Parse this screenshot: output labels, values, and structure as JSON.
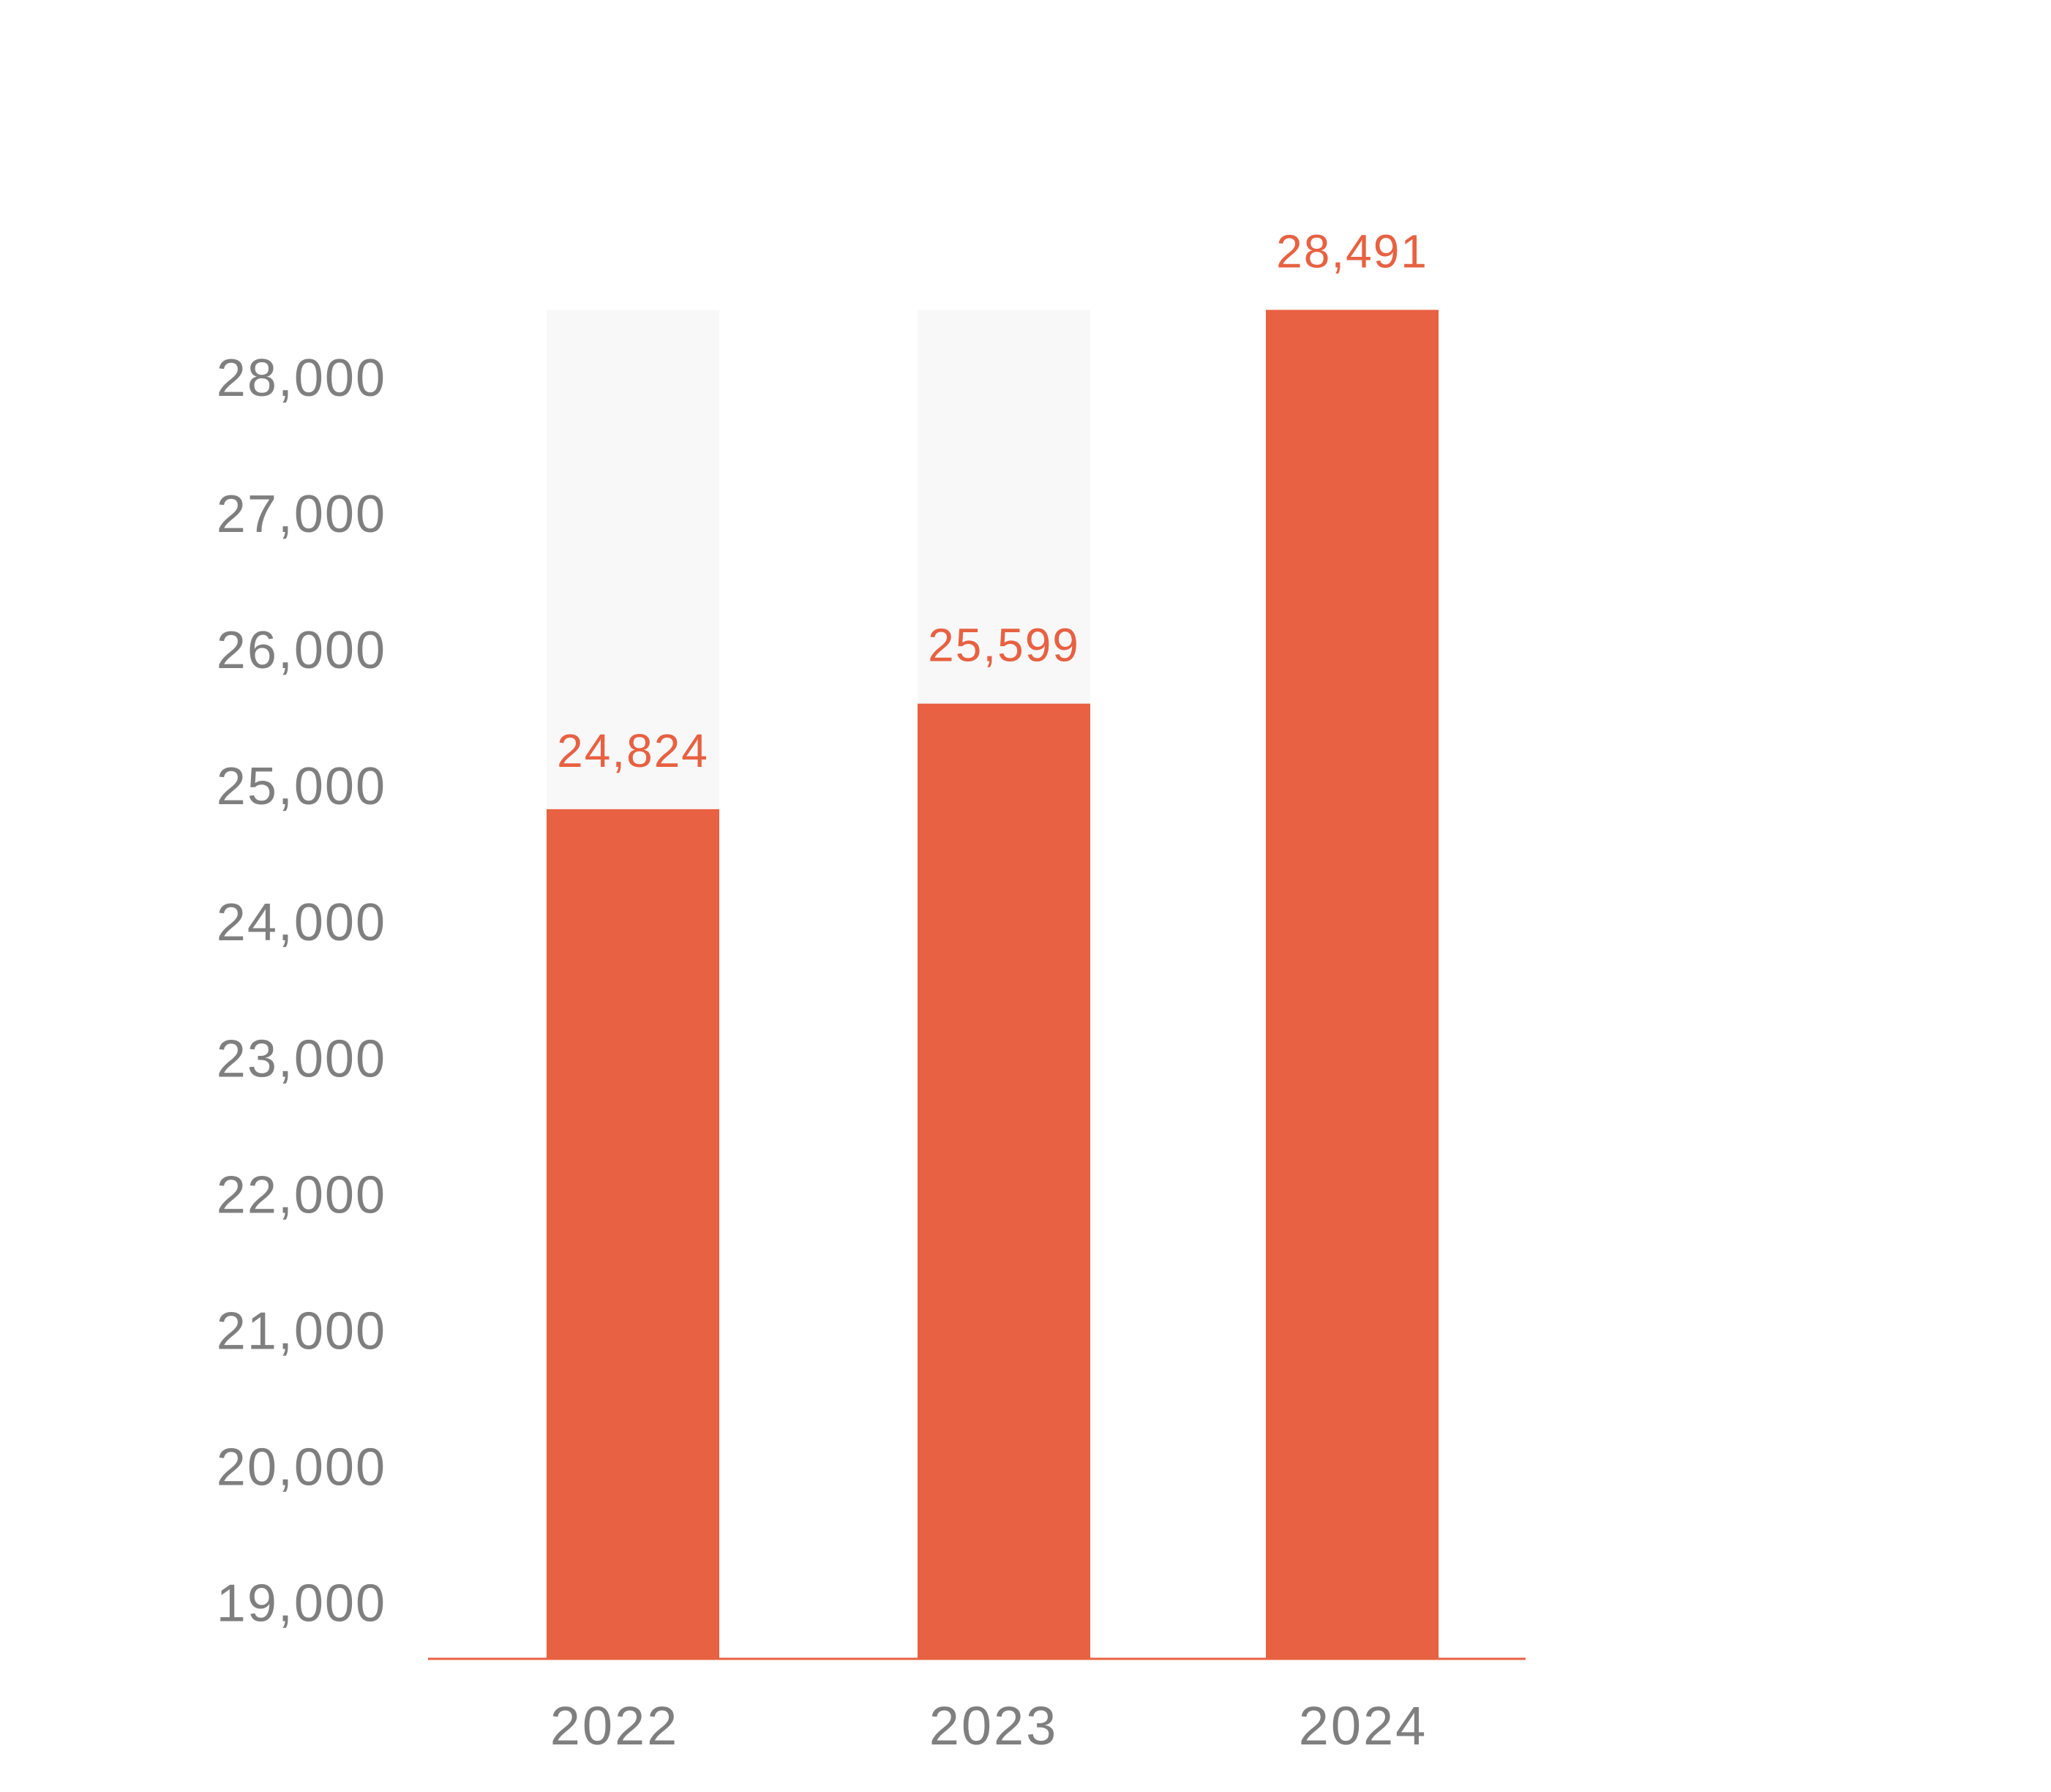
{
  "chart_data": {
    "type": "bar",
    "categories": [
      "2022",
      "2023",
      "2024"
    ],
    "values": [
      24824,
      25599,
      28491
    ],
    "data_labels": [
      "24,824",
      "25,599",
      "28,491"
    ],
    "yticks": [
      19000,
      20000,
      21000,
      22000,
      23000,
      24000,
      25000,
      26000,
      27000,
      28000
    ],
    "ytick_labels": [
      "19,000",
      "20,000",
      "21,000",
      "22,000",
      "23,000",
      "24,000",
      "25,000",
      "26,000",
      "27,000",
      "28,000"
    ],
    "ylim": [
      18590,
      28891
    ],
    "background_track": true,
    "grid": false,
    "title": "",
    "xlabel": "",
    "ylabel": "",
    "colors": {
      "bar": "#E76142",
      "track": "#F8F8F8",
      "data_label": "#E76142",
      "tick_label": "#7F7F7F",
      "baseline": "#E76142"
    }
  }
}
